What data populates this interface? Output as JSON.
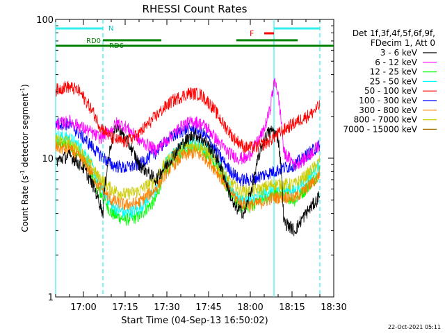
{
  "chart_data": {
    "type": "line",
    "title": "RHESSI Count Rates",
    "xlabel": "Start Time (04-Sep-13 16:50:02)",
    "ylabel_main": "Count Rate (s",
    "ylabel_sup": "-1",
    "ylabel_mid": " detector segment",
    "ylabel_sup2": "-1",
    "ylabel_end": ")",
    "y_scale": "log",
    "ylim": [
      1,
      100
    ],
    "y_ticks": [
      {
        "value": 1,
        "label": "1"
      },
      {
        "value": 10,
        "label": "10"
      },
      {
        "value": 100,
        "label": "100"
      }
    ],
    "xlim_min": [
      0,
      100
    ],
    "x_ticks": [
      {
        "min": 10,
        "label": "17:00"
      },
      {
        "min": 25,
        "label": "17:15"
      },
      {
        "min": 40,
        "label": "17:30"
      },
      {
        "min": 55,
        "label": "17:45"
      },
      {
        "min": 70,
        "label": "18:00"
      },
      {
        "min": 85,
        "label": "18:15"
      },
      {
        "min": 100,
        "label": "18:30"
      }
    ],
    "legend_header": [
      "Det 1f,3f,4f,5f,6f,9f,",
      "FDecim 1, Att 0"
    ],
    "legend_placement": "right",
    "series": [
      {
        "name": "3 - 6 keV",
        "color": "#000000",
        "points": [
          [
            0,
            9.5
          ],
          [
            5,
            10.5
          ],
          [
            10,
            8.5
          ],
          [
            14,
            6
          ],
          [
            17,
            4
          ],
          [
            20,
            13
          ],
          [
            22,
            17
          ],
          [
            25,
            14
          ],
          [
            30,
            9
          ],
          [
            36,
            7
          ],
          [
            40,
            9
          ],
          [
            46,
            13
          ],
          [
            50,
            15
          ],
          [
            54,
            13
          ],
          [
            58,
            10
          ],
          [
            62,
            6
          ],
          [
            64,
            4.5
          ],
          [
            68,
            4
          ],
          [
            71,
            6.5
          ],
          [
            74,
            12
          ],
          [
            76,
            15
          ],
          [
            78,
            16
          ],
          [
            80,
            14
          ],
          [
            82,
            3.5
          ],
          [
            86,
            3
          ],
          [
            90,
            4
          ],
          [
            94,
            5
          ],
          [
            97,
            7
          ],
          [
            100,
            8
          ]
        ]
      },
      {
        "name": "6 - 12 keV",
        "color": "#ff00ff",
        "points": [
          [
            0,
            17.5
          ],
          [
            5,
            18.5
          ],
          [
            10,
            16.5
          ],
          [
            16,
            14
          ],
          [
            20,
            16
          ],
          [
            22,
            18
          ],
          [
            25,
            17
          ],
          [
            30,
            13.5
          ],
          [
            36,
            11.5
          ],
          [
            40,
            13.5
          ],
          [
            46,
            17.5
          ],
          [
            50,
            18.5
          ],
          [
            54,
            17
          ],
          [
            58,
            13.5
          ],
          [
            62,
            11
          ],
          [
            66,
            10
          ],
          [
            69,
            10
          ],
          [
            72,
            12.5
          ],
          [
            75,
            16
          ],
          [
            77,
            22
          ],
          [
            78,
            30
          ],
          [
            79,
            37
          ],
          [
            80,
            28
          ],
          [
            82,
            11
          ],
          [
            86,
            9
          ],
          [
            90,
            10
          ],
          [
            94,
            12
          ],
          [
            97,
            14
          ],
          [
            100,
            15
          ]
        ]
      },
      {
        "name": "12 - 25 keV",
        "color": "#00ff00",
        "points": [
          [
            0,
            13
          ],
          [
            5,
            12.5
          ],
          [
            10,
            10
          ],
          [
            15,
            6
          ],
          [
            20,
            4
          ],
          [
            25,
            3.6
          ],
          [
            30,
            3.8
          ],
          [
            36,
            5
          ],
          [
            40,
            8.5
          ],
          [
            46,
            11.5
          ],
          [
            50,
            12
          ],
          [
            54,
            11
          ],
          [
            58,
            8.5
          ],
          [
            62,
            6
          ],
          [
            66,
            4.5
          ],
          [
            70,
            4.5
          ],
          [
            74,
            5
          ],
          [
            78,
            5.5
          ],
          [
            82,
            5.5
          ],
          [
            86,
            5
          ],
          [
            90,
            6
          ],
          [
            94,
            7.5
          ],
          [
            97,
            10
          ],
          [
            100,
            11
          ]
        ]
      },
      {
        "name": "25 - 50 keV",
        "color": "#00ffff",
        "points": [
          [
            0,
            14.5
          ],
          [
            5,
            14
          ],
          [
            10,
            11.5
          ],
          [
            15,
            7
          ],
          [
            20,
            4.5
          ],
          [
            25,
            4
          ],
          [
            30,
            4.3
          ],
          [
            36,
            5.8
          ],
          [
            40,
            9.5
          ],
          [
            46,
            12.5
          ],
          [
            50,
            13
          ],
          [
            54,
            12
          ],
          [
            58,
            9.5
          ],
          [
            62,
            6.5
          ],
          [
            66,
            5
          ],
          [
            70,
            5
          ],
          [
            74,
            5.5
          ],
          [
            78,
            6
          ],
          [
            82,
            6
          ],
          [
            86,
            5.8
          ],
          [
            90,
            7
          ],
          [
            94,
            8.5
          ],
          [
            97,
            11
          ],
          [
            100,
            12
          ]
        ]
      },
      {
        "name": "50 - 100 keV",
        "color": "#ff0000",
        "points": [
          [
            0,
            31
          ],
          [
            4,
            33
          ],
          [
            8,
            31
          ],
          [
            12,
            24
          ],
          [
            16,
            17
          ],
          [
            20,
            14
          ],
          [
            25,
            13
          ],
          [
            30,
            15
          ],
          [
            36,
            20
          ],
          [
            42,
            26
          ],
          [
            48,
            29.5
          ],
          [
            52,
            29
          ],
          [
            56,
            24
          ],
          [
            60,
            18
          ],
          [
            64,
            14
          ],
          [
            68,
            12
          ],
          [
            72,
            12
          ],
          [
            76,
            13
          ],
          [
            80,
            15
          ],
          [
            84,
            17
          ],
          [
            88,
            19
          ],
          [
            92,
            21
          ],
          [
            96,
            25
          ],
          [
            100,
            28
          ]
        ]
      },
      {
        "name": "100 - 300 keV",
        "color": "#0000ff",
        "points": [
          [
            0,
            18
          ],
          [
            5,
            17.5
          ],
          [
            10,
            14
          ],
          [
            15,
            11
          ],
          [
            20,
            9
          ],
          [
            25,
            8.5
          ],
          [
            30,
            9
          ],
          [
            36,
            11
          ],
          [
            40,
            13.5
          ],
          [
            46,
            16
          ],
          [
            50,
            16.5
          ],
          [
            54,
            14.5
          ],
          [
            58,
            11
          ],
          [
            62,
            8.5
          ],
          [
            66,
            7
          ],
          [
            70,
            7
          ],
          [
            74,
            7.5
          ],
          [
            78,
            8
          ],
          [
            82,
            8.5
          ],
          [
            86,
            9
          ],
          [
            90,
            10.5
          ],
          [
            94,
            12
          ],
          [
            97,
            14
          ],
          [
            100,
            15
          ]
        ]
      },
      {
        "name": "300 - 800 keV",
        "color": "#ff8000",
        "points": [
          [
            0,
            12
          ],
          [
            5,
            11.5
          ],
          [
            10,
            9.5
          ],
          [
            15,
            6.5
          ],
          [
            20,
            5
          ],
          [
            25,
            4.6
          ],
          [
            30,
            4.8
          ],
          [
            36,
            6
          ],
          [
            40,
            8
          ],
          [
            46,
            10.5
          ],
          [
            50,
            11
          ],
          [
            54,
            10
          ],
          [
            58,
            8
          ],
          [
            62,
            6
          ],
          [
            66,
            4.8
          ],
          [
            70,
            4.6
          ],
          [
            74,
            4.8
          ],
          [
            78,
            5.2
          ],
          [
            82,
            5.3
          ],
          [
            86,
            5.2
          ],
          [
            90,
            6
          ],
          [
            94,
            7.2
          ],
          [
            97,
            9.5
          ],
          [
            100,
            10.5
          ]
        ]
      },
      {
        "name": "800 - 7000 keV",
        "color": "#cccc00",
        "points": [
          [
            0,
            13.5
          ],
          [
            5,
            13
          ],
          [
            10,
            10.5
          ],
          [
            15,
            7.5
          ],
          [
            20,
            6
          ],
          [
            25,
            5.5
          ],
          [
            30,
            5.8
          ],
          [
            36,
            7
          ],
          [
            40,
            9.5
          ],
          [
            46,
            12
          ],
          [
            50,
            12.5
          ],
          [
            54,
            11.5
          ],
          [
            58,
            9
          ],
          [
            62,
            7
          ],
          [
            66,
            5.8
          ],
          [
            70,
            5.8
          ],
          [
            74,
            6
          ],
          [
            78,
            6.5
          ],
          [
            82,
            6.5
          ],
          [
            86,
            6.5
          ],
          [
            90,
            7.5
          ],
          [
            94,
            9
          ],
          [
            97,
            11
          ],
          [
            100,
            12
          ]
        ]
      },
      {
        "name": "7000 - 15000 keV",
        "color": "#a07000",
        "points": []
      }
    ],
    "annotations": {
      "N_label": "N",
      "F_label": "F",
      "rd0_label": "RD0",
      "rd6_label": "RD6",
      "cyan_bars": [
        [
          0,
          17
        ],
        [
          78.5,
          95
        ]
      ],
      "cyan_vlines": [
        0,
        78.5
      ],
      "cyan_dashed_vlines": [
        17,
        95
      ],
      "green_upper_bars": [
        [
          17,
          38
        ],
        [
          65,
          87
        ]
      ],
      "green_lower_bars": [
        [
          0,
          17
        ],
        [
          17,
          38
        ],
        [
          38,
          65
        ],
        [
          65,
          88
        ],
        [
          88,
          100
        ]
      ],
      "red_bar": [
        75,
        78.5
      ]
    },
    "colors": {
      "N": "#00c0c0",
      "RD": "#008000",
      "F": "#ff0000",
      "cyan": "#33eeee"
    }
  },
  "timestamp": "22-Oct-2021 05:11"
}
